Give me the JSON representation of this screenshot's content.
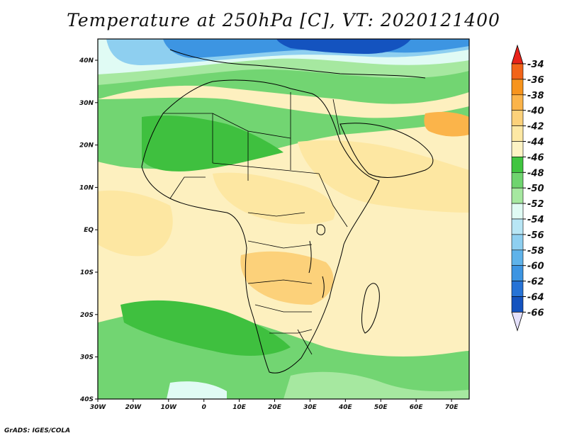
{
  "title": "Temperature at 250hPa [C], VT: 2020121400",
  "credit": "GrADS: IGES/COLA",
  "map": {
    "lon_range": [
      -30,
      75
    ],
    "lat_range": [
      -40,
      45
    ],
    "lon_ticks": [
      "30W",
      "20W",
      "10W",
      "0",
      "10E",
      "20E",
      "30E",
      "40E",
      "50E",
      "60E",
      "70E"
    ],
    "lat_ticks": [
      "40N",
      "30N",
      "20N",
      "10N",
      "EQ",
      "10S",
      "20S",
      "30S",
      "40S"
    ]
  },
  "colorbar": {
    "labels": [
      "-34",
      "-36",
      "-38",
      "-40",
      "-42",
      "-44",
      "-46",
      "-48",
      "-50",
      "-52",
      "-54",
      "-56",
      "-58",
      "-60",
      "-62",
      "-64",
      "-66"
    ],
    "colors": [
      "#e8231a",
      "#f26419",
      "#f7941d",
      "#fbb44a",
      "#fcd17a",
      "#fde8a4",
      "#fdf3c4",
      "#40c540",
      "#6fd46f",
      "#a6e8a0",
      "#e0fbf4",
      "#b8e6f5",
      "#8ecff0",
      "#5fb3ea",
      "#3d95e2",
      "#2673d6",
      "#1453bf",
      "#0a2f8a"
    ]
  },
  "field_colors": {
    "pale_yellow": "#fdf0bf",
    "yellow": "#fde7a2",
    "gold": "#fcd17a",
    "orange": "#fbb44a",
    "green_dark": "#3fc03f",
    "green": "#72d572",
    "green_light": "#a6e8a0",
    "cyan": "#e0fbf4",
    "blue_light": "#8ecff0",
    "blue": "#3d95e2",
    "blue_dark": "#1453bf"
  }
}
